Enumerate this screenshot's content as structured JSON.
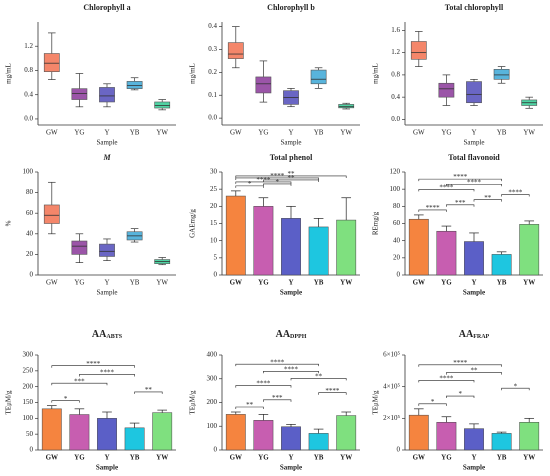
{
  "chart_data": [
    {
      "type": "box",
      "title": "Chlorophyll a",
      "ylabel": "mg/mL",
      "xlabel": "Sample",
      "categories": [
        "GW",
        "YG",
        "Y",
        "YB",
        "YW"
      ],
      "colors": [
        "#f4866a",
        "#9b55a8",
        "#6a66c4",
        "#58b4dc",
        "#4fd3a3"
      ],
      "boxes": [
        {
          "min": 0.65,
          "q1": 0.78,
          "median": 0.92,
          "q3": 1.08,
          "max": 1.42
        },
        {
          "min": 0.2,
          "q1": 0.32,
          "median": 0.42,
          "q3": 0.5,
          "max": 0.75
        },
        {
          "min": 0.2,
          "q1": 0.28,
          "median": 0.38,
          "q3": 0.52,
          "max": 0.58
        },
        {
          "min": 0.48,
          "q1": 0.5,
          "median": 0.55,
          "q3": 0.62,
          "max": 0.68
        },
        {
          "min": 0.15,
          "q1": 0.18,
          "median": 0.22,
          "q3": 0.28,
          "max": 0.32
        }
      ],
      "ylim": [
        -0.1,
        1.6
      ],
      "yticks": [
        {
          "value": 0,
          "label": "0.0"
        },
        0.4,
        0.8,
        1.2
      ]
    },
    {
      "type": "box",
      "title": "Chlorophyll b",
      "ylabel": "mg/mL",
      "xlabel": "Sample",
      "categories": [
        "GW",
        "YG",
        "Y",
        "YB",
        "YW"
      ],
      "colors": [
        "#f4866a",
        "#9b55a8",
        "#6a66c4",
        "#58b4dc",
        "#4fd3a3"
      ],
      "boxes": [
        {
          "min": 0.22,
          "q1": 0.26,
          "median": 0.28,
          "q3": 0.33,
          "max": 0.4
        },
        {
          "min": 0.07,
          "q1": 0.11,
          "median": 0.15,
          "q3": 0.18,
          "max": 0.25
        },
        {
          "min": 0.05,
          "q1": 0.06,
          "median": 0.09,
          "q3": 0.12,
          "max": 0.13
        },
        {
          "min": 0.13,
          "q1": 0.15,
          "median": 0.17,
          "q3": 0.21,
          "max": 0.22
        },
        {
          "min": 0.04,
          "q1": 0.045,
          "median": 0.05,
          "q3": 0.06,
          "max": 0.065
        }
      ],
      "ylim": [
        -0.03,
        0.42
      ],
      "yticks": [
        {
          "value": 0,
          "label": "0.0"
        },
        0.1,
        0.2,
        0.3,
        0.4
      ]
    },
    {
      "type": "box",
      "title": "Total chlorophyll",
      "ylabel": "mg/mL",
      "xlabel": "Sample",
      "categories": [
        "GW",
        "YG",
        "Y",
        "YB",
        "YW"
      ],
      "colors": [
        "#f4866a",
        "#9b55a8",
        "#6a66c4",
        "#58b4dc",
        "#4fd3a3"
      ],
      "boxes": [
        {
          "min": 0.95,
          "q1": 1.08,
          "median": 1.2,
          "q3": 1.4,
          "max": 1.58
        },
        {
          "min": 0.25,
          "q1": 0.4,
          "median": 0.55,
          "q3": 0.65,
          "max": 0.8
        },
        {
          "min": 0.25,
          "q1": 0.3,
          "median": 0.45,
          "q3": 0.68,
          "max": 0.72
        },
        {
          "min": 0.65,
          "q1": 0.72,
          "median": 0.8,
          "q3": 0.9,
          "max": 0.95
        },
        {
          "min": 0.2,
          "q1": 0.25,
          "median": 0.3,
          "q3": 0.35,
          "max": 0.4
        }
      ],
      "ylim": [
        -0.1,
        1.75
      ],
      "yticks": [
        {
          "value": 0,
          "label": "0.0"
        },
        0.4,
        0.8,
        1.2,
        1.6
      ]
    },
    {
      "type": "box",
      "title": "M",
      "ylabel": "%",
      "xlabel": "Sample",
      "categories": [
        "GW",
        "YG",
        "Y",
        "YB",
        "YW"
      ],
      "colors": [
        "#f4866a",
        "#9b55a8",
        "#6a66c4",
        "#58b4dc",
        "#4fd3a3"
      ],
      "boxes": [
        {
          "min": 40,
          "q1": 50,
          "median": 58,
          "q3": 68,
          "max": 90
        },
        {
          "min": 12,
          "q1": 20,
          "median": 28,
          "q3": 33,
          "max": 40
        },
        {
          "min": 14,
          "q1": 18,
          "median": 23,
          "q3": 30,
          "max": 35
        },
        {
          "min": 32,
          "q1": 34,
          "median": 38,
          "q3": 42,
          "max": 45
        },
        {
          "min": 10,
          "q1": 11,
          "median": 13,
          "q3": 15,
          "max": 17
        }
      ],
      "ylim": [
        0,
        100
      ],
      "yticks": [
        0,
        20,
        40,
        60,
        80,
        100
      ]
    },
    {
      "type": "bar",
      "title": "Total phenol",
      "ylabel": "GAEmg/g",
      "xlabel": "Sample",
      "categories": [
        "GW",
        "YG",
        "Y",
        "YB",
        "YW"
      ],
      "colors": [
        "#f5843f",
        "#c75eb0",
        "#5b5fc7",
        "#1ec6e0",
        "#7fe07f"
      ],
      "values": [
        23,
        20,
        16.5,
        14,
        16
      ],
      "errors": [
        1.5,
        2.5,
        3.5,
        2.5,
        6.5
      ],
      "ylim": [
        0,
        30
      ],
      "yticks": [
        0,
        5,
        10,
        15,
        20,
        25,
        30
      ],
      "annotations": [
        {
          "from": 0,
          "to": 1,
          "label": "*"
        },
        {
          "from": 1,
          "to": 2,
          "label": "*"
        },
        {
          "from": 0,
          "to": 2,
          "label": "****"
        },
        {
          "from": 1,
          "to": 3,
          "label": "**"
        },
        {
          "from": 0,
          "to": 3,
          "label": "****"
        },
        {
          "from": 0,
          "to": 4,
          "label": "**"
        }
      ]
    },
    {
      "type": "bar",
      "title": "Total flavonoid",
      "ylabel": "REmg/g",
      "xlabel": "Sample",
      "categories": [
        "GW",
        "YG",
        "Y",
        "YB",
        "YW"
      ],
      "colors": [
        "#f5843f",
        "#c75eb0",
        "#5b5fc7",
        "#1ec6e0",
        "#7fe07f"
      ],
      "values": [
        65,
        51,
        39,
        24,
        59
      ],
      "errors": [
        5,
        6,
        10,
        3,
        4
      ],
      "ylim": [
        0,
        120
      ],
      "yticks": [
        0,
        20,
        40,
        60,
        80,
        100,
        120
      ],
      "annotations": [
        {
          "from": 0,
          "to": 1,
          "label": "****"
        },
        {
          "from": 1,
          "to": 2,
          "label": "***"
        },
        {
          "from": 2,
          "to": 3,
          "label": "**"
        },
        {
          "from": 3,
          "to": 4,
          "label": "****"
        },
        {
          "from": 0,
          "to": 2,
          "label": "****"
        },
        {
          "from": 1,
          "to": 3,
          "label": "****"
        },
        {
          "from": 0,
          "to": 3,
          "label": "****"
        }
      ]
    },
    {
      "type": "bar",
      "title": "AA",
      "title_sub": "ABTS",
      "ylabel": "TEμM/g",
      "xlabel": "Sample",
      "categories": [
        "GW",
        "YG",
        "Y",
        "YB",
        "YW"
      ],
      "colors": [
        "#f5843f",
        "#c75eb0",
        "#5b5fc7",
        "#1ec6e0",
        "#7fe07f"
      ],
      "values": [
        130,
        112,
        100,
        70,
        118
      ],
      "errors": [
        10,
        18,
        20,
        15,
        8
      ],
      "ylim": [
        0,
        300
      ],
      "yticks": [
        0,
        50,
        100,
        150,
        200,
        250,
        300
      ],
      "annotations": [
        {
          "from": 0,
          "to": 1,
          "label": "*"
        },
        {
          "from": 3,
          "to": 4,
          "label": "**"
        },
        {
          "from": 0,
          "to": 2,
          "label": "***"
        },
        {
          "from": 1,
          "to": 3,
          "label": "****"
        },
        {
          "from": 0,
          "to": 3,
          "label": "****"
        }
      ]
    },
    {
      "type": "bar",
      "title": "AA",
      "title_sub": "DPPH",
      "ylabel": "TEμM/g",
      "xlabel": "Sample",
      "categories": [
        "GW",
        "YG",
        "Y",
        "YB",
        "YW"
      ],
      "colors": [
        "#f5843f",
        "#c75eb0",
        "#5b5fc7",
        "#1ec6e0",
        "#7fe07f"
      ],
      "values": [
        150,
        125,
        98,
        70,
        145
      ],
      "errors": [
        10,
        25,
        10,
        18,
        15
      ],
      "ylim": [
        0,
        400
      ],
      "yticks": [
        0,
        100,
        200,
        300,
        400
      ],
      "annotations": [
        {
          "from": 0,
          "to": 1,
          "label": "**"
        },
        {
          "from": 1,
          "to": 2,
          "label": "***"
        },
        {
          "from": 3,
          "to": 4,
          "label": "****"
        },
        {
          "from": 0,
          "to": 2,
          "label": "****"
        },
        {
          "from": 2,
          "to": 4,
          "label": "**"
        },
        {
          "from": 1,
          "to": 3,
          "label": "****"
        },
        {
          "from": 0,
          "to": 3,
          "label": "****"
        }
      ]
    },
    {
      "type": "bar",
      "title": "AA",
      "title_sub": "FRAP",
      "ylabel": "TEμM/g",
      "xlabel": "Sample",
      "categories": [
        "GW",
        "YG",
        "Y",
        "YB",
        "YW"
      ],
      "colors": [
        "#f5843f",
        "#c75eb0",
        "#5b5fc7",
        "#1ec6e0",
        "#7fe07f"
      ],
      "values": [
        220000,
        175000,
        135000,
        105000,
        175000
      ],
      "errors": [
        40000,
        35000,
        30000,
        8000,
        25000
      ],
      "ylim": [
        0,
        600000
      ],
      "yticks": [
        0,
        {
          "value": 200000,
          "label": "2×10⁵"
        },
        {
          "value": 400000,
          "label": "4×10⁵"
        },
        {
          "value": 600000,
          "label": "6×10⁵"
        }
      ],
      "annotations": [
        {
          "from": 0,
          "to": 1,
          "label": "*"
        },
        {
          "from": 1,
          "to": 2,
          "label": "*"
        },
        {
          "from": 3,
          "to": 4,
          "label": "*"
        },
        {
          "from": 0,
          "to": 2,
          "label": "****"
        },
        {
          "from": 1,
          "to": 3,
          "label": "**"
        },
        {
          "from": 0,
          "to": 3,
          "label": "****"
        }
      ]
    }
  ]
}
